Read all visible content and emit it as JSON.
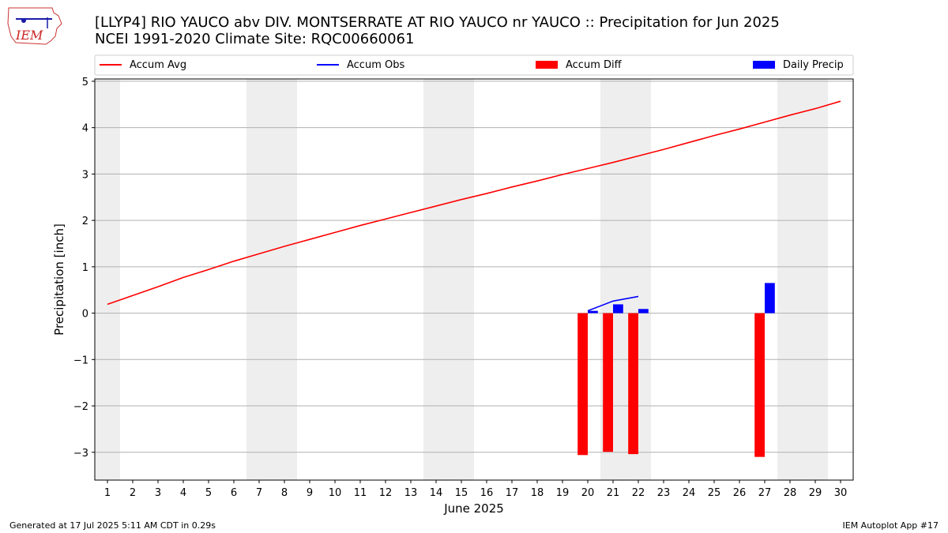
{
  "header": {
    "title_line1": "[LLYP4] RIO YAUCO abv DIV. MONTSERRATE  AT RIO YAUCO nr YAUCO :: Precipitation for Jun 2025",
    "title_line2": "NCEI 1991-2020 Climate Site: RQC00660061",
    "logo_text": "IEM"
  },
  "footer": {
    "generated": "Generated at 17 Jul 2025 5:11 AM CDT in 0.29s",
    "app": "IEM Autoplot App #17"
  },
  "colors": {
    "accum_avg": "#ff0000",
    "accum_obs": "#0000ff",
    "accum_diff": "#ff0000",
    "daily_precip": "#0000ff",
    "weekend_band": "#eeeeee",
    "grid": "#b0b0b0"
  },
  "chart_data": {
    "type": "bar",
    "title": "[LLYP4] RIO YAUCO abv DIV. MONTSERRATE  AT RIO YAUCO nr YAUCO :: Precipitation for Jun 2025",
    "xlabel": "June 2025",
    "ylabel": "Precipitation [inch]",
    "xlim": [
      0.5,
      30.5
    ],
    "ylim": [
      -3.6,
      5.05
    ],
    "yticks": [
      -3,
      -2,
      -1,
      0,
      1,
      2,
      3,
      4,
      5
    ],
    "ytick_labels": [
      "−3",
      "−2",
      "−1",
      "0",
      "1",
      "2",
      "3",
      "4",
      "5"
    ],
    "xticks": [
      1,
      2,
      3,
      4,
      5,
      6,
      7,
      8,
      9,
      10,
      11,
      12,
      13,
      14,
      15,
      16,
      17,
      18,
      19,
      20,
      21,
      22,
      23,
      24,
      25,
      26,
      27,
      28,
      29,
      30
    ],
    "weekend_bands": [
      [
        0.5,
        1.5
      ],
      [
        6.5,
        8.5
      ],
      [
        13.5,
        15.5
      ],
      [
        20.5,
        22.5
      ],
      [
        27.5,
        29.5
      ]
    ],
    "legend": {
      "placement": "top",
      "entries": [
        "Accum Avg",
        "Accum Obs",
        "Accum Diff",
        "Daily Precip"
      ]
    },
    "series": [
      {
        "name": "Accum Avg",
        "kind": "line",
        "x": [
          1,
          2,
          3,
          4,
          5,
          6,
          7,
          8,
          9,
          10,
          11,
          12,
          13,
          14,
          15,
          16,
          17,
          18,
          19,
          20,
          21,
          22,
          23,
          24,
          25,
          26,
          27,
          28,
          29,
          30
        ],
        "values": [
          0.19,
          0.38,
          0.57,
          0.77,
          0.94,
          1.12,
          1.28,
          1.44,
          1.59,
          1.74,
          1.89,
          2.03,
          2.17,
          2.31,
          2.45,
          2.58,
          2.72,
          2.85,
          2.99,
          3.12,
          3.25,
          3.39,
          3.53,
          3.68,
          3.83,
          3.97,
          4.12,
          4.27,
          4.41,
          4.57
        ]
      },
      {
        "name": "Accum Obs",
        "kind": "line",
        "x": [
          20,
          21,
          22
        ],
        "values": [
          0.05,
          0.26,
          0.36
        ]
      },
      {
        "name": "Accum Diff",
        "kind": "bar",
        "x": [
          20,
          21,
          22,
          27
        ],
        "values": [
          -3.06,
          -2.99,
          -3.04,
          -3.1
        ]
      },
      {
        "name": "Daily Precip",
        "kind": "bar",
        "x": [
          20,
          21,
          22,
          27
        ],
        "values": [
          0.05,
          0.19,
          0.09,
          0.65
        ]
      }
    ]
  }
}
